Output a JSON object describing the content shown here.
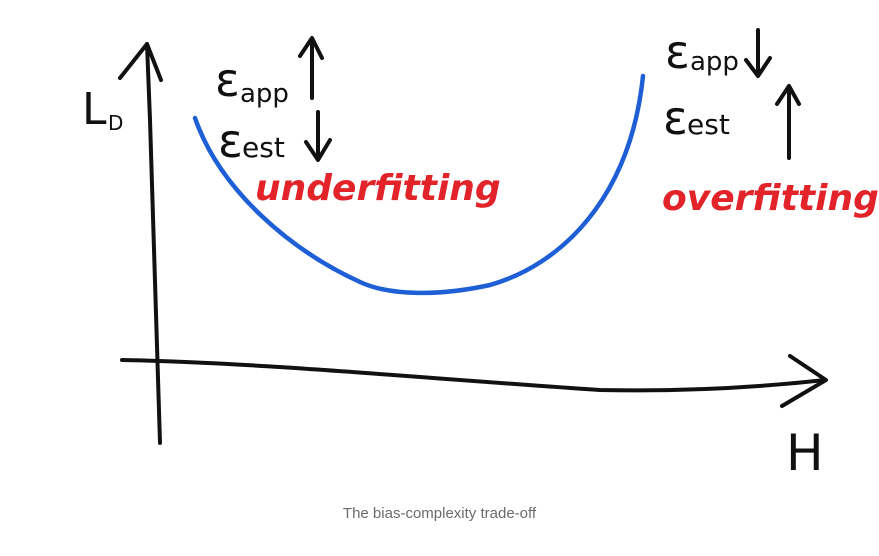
{
  "diagram": {
    "y_axis_label": "L",
    "y_axis_subscript": "D",
    "x_axis_label": "H",
    "left_annotation": {
      "line1_symbol": "ε",
      "line1_sub": "app",
      "line2_symbol": "ε",
      "line2_sub": "est",
      "regime": "underfitting"
    },
    "right_annotation": {
      "line1_symbol": "ε",
      "line1_sub": "app",
      "line2_symbol": "ε",
      "line2_sub": "est",
      "regime": "overfitting"
    },
    "colors": {
      "ink": "#111111",
      "curve": "#1f5fd6",
      "regime": "#e2232a",
      "caption": "#6b6b6b"
    },
    "icons": [
      "arrow-up-icon",
      "arrow-down-icon"
    ]
  },
  "caption": "The bias-complexity trade-off"
}
